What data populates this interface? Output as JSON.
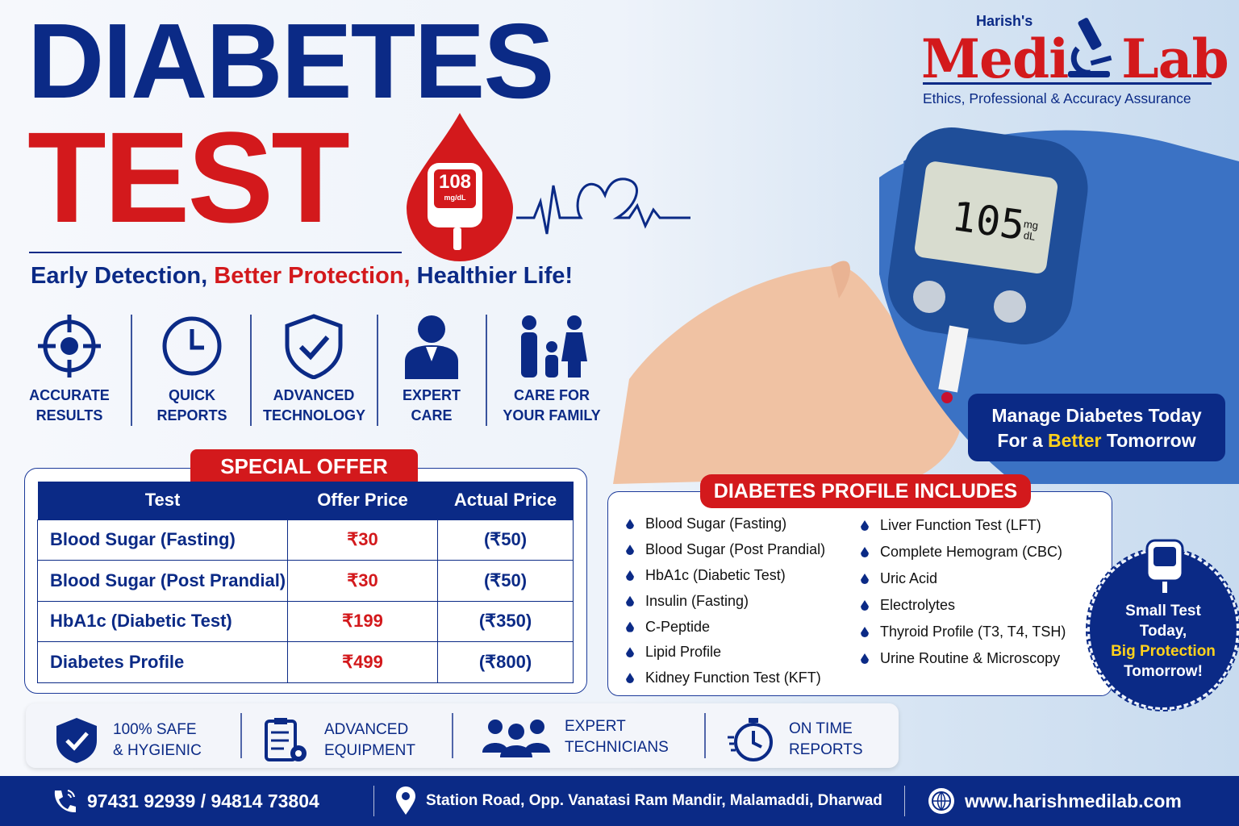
{
  "header": {
    "title_line1": "DIABETES",
    "title_line2": "TEST",
    "drop_reading": "108",
    "drop_unit": "mg/dL"
  },
  "tagline": {
    "part1": "Early Detection,",
    "part2": "Better Protection,",
    "part3": "Healthier Life!"
  },
  "logo": {
    "prefix": "Harish's",
    "name_left": "Medi",
    "name_right": "Lab",
    "slogan": "Ethics, Professional & Accuracy Assurance"
  },
  "meter": {
    "reading": "105",
    "unit_top": "mg",
    "unit_bottom": "dL"
  },
  "features": [
    {
      "line1": "ACCURATE",
      "line2": "RESULTS",
      "icon": "target-icon"
    },
    {
      "line1": "QUICK",
      "line2": "REPORTS",
      "icon": "clock-icon"
    },
    {
      "line1": "ADVANCED",
      "line2": "TECHNOLOGY",
      "icon": "shield-check-icon"
    },
    {
      "line1": "EXPERT",
      "line2": "CARE",
      "icon": "doctor-icon"
    },
    {
      "line1": "CARE FOR",
      "line2": "YOUR FAMILY",
      "icon": "family-icon"
    }
  ],
  "manage": {
    "line1": "Manage Diabetes Today",
    "line2_pre": "For a",
    "line2_hl": "Better",
    "line2_post": "Tomorrow"
  },
  "offer": {
    "title": "SPECIAL OFFER",
    "headers": [
      "Test",
      "Offer Price",
      "Actual Price"
    ],
    "rows": [
      [
        "Blood Sugar (Fasting)",
        "₹30",
        "(₹50)"
      ],
      [
        "Blood Sugar (Post Prandial)",
        "₹30",
        "(₹50)"
      ],
      [
        "HbA1c (Diabetic Test)",
        "₹199",
        "(₹350)"
      ],
      [
        "Diabetes Profile",
        "₹499",
        "(₹800)"
      ]
    ]
  },
  "profile": {
    "title": "DIABETES PROFILE INCLUDES",
    "col1": [
      "Blood Sugar (Fasting)",
      "Blood Sugar (Post Prandial)",
      "HbA1c (Diabetic Test)",
      "Insulin (Fasting)",
      "C-Peptide",
      "Lipid Profile",
      "Kidney Function Test (KFT)"
    ],
    "col2": [
      "Liver Function Test (LFT)",
      "Complete Hemogram (CBC)",
      "Uric Acid",
      "Electrolytes",
      "Thyroid Profile (T3, T4, TSH)",
      "Urine Routine & Microscopy"
    ]
  },
  "badge": {
    "line1": "Small Test",
    "line2": "Today,",
    "line3": "Big Protection",
    "line4": "Tomorrow!"
  },
  "bottom_features": [
    {
      "line1": "100% SAFE",
      "line2": "& HYGIENIC"
    },
    {
      "line1": "ADVANCED",
      "line2": "EQUIPMENT"
    },
    {
      "line1": "EXPERT",
      "line2": "TECHNICIANS"
    },
    {
      "line1": "ON TIME",
      "line2": "REPORTS"
    }
  ],
  "footer": {
    "phone": "97431 92939 / 94814 73804",
    "address": "Station Road, Opp. Vanatasi Ram Mandir, Malamaddi, Dharwad",
    "website": "www.harishmedilab.com"
  },
  "colors": {
    "navy": "#0b2a86",
    "red": "#d3191c",
    "yellow": "#ffd21c"
  }
}
